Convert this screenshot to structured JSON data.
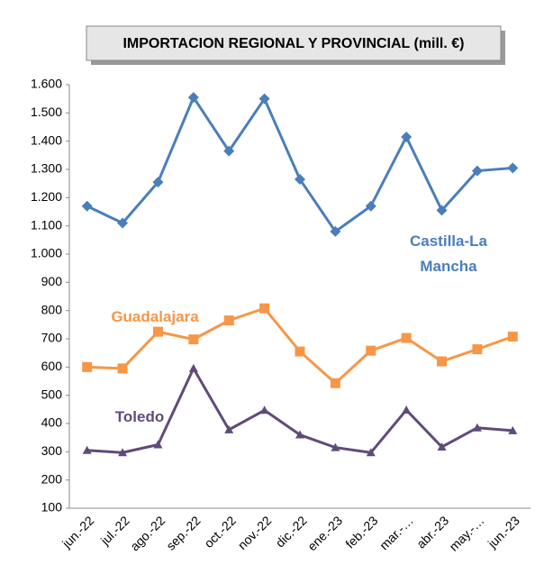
{
  "chart_data": {
    "type": "line",
    "title": "IMPORTACION REGIONAL Y PROVINCIAL (mill. €)",
    "categories": [
      "jun.-22",
      "jul.-22",
      "ago.-22",
      "sep.-22",
      "oct.-22",
      "nov.-22",
      "dic.-22",
      "ene.-23",
      "feb.-23",
      "mar.-…",
      "abr.-23",
      "may.-…",
      "jun.-23"
    ],
    "series": [
      {
        "name": "Castilla-La Mancha",
        "color": "#4a7ebb",
        "marker": "diamond",
        "values": [
          1170,
          1110,
          1255,
          1555,
          1365,
          1550,
          1265,
          1080,
          1170,
          1415,
          1155,
          1295,
          1305
        ]
      },
      {
        "name": "Guadalajara",
        "color": "#f79646",
        "marker": "square",
        "values": [
          600,
          595,
          725,
          698,
          765,
          808,
          655,
          543,
          658,
          703,
          620,
          663,
          708
        ]
      },
      {
        "name": "Toledo",
        "color": "#604a7b",
        "marker": "triangle",
        "values": [
          305,
          297,
          325,
          595,
          378,
          447,
          360,
          315,
          297,
          448,
          317,
          385,
          375
        ]
      }
    ],
    "ylim": [
      100,
      1600
    ],
    "yticks": [
      100,
      200,
      300,
      400,
      500,
      600,
      700,
      800,
      900,
      {
        "value": 1000,
        "label": "1.000"
      },
      {
        "value": 1100,
        "label": "1.100"
      },
      {
        "value": 1200,
        "label": "1.200"
      },
      {
        "value": 1300,
        "label": "1.300"
      },
      {
        "value": 1400,
        "label": "1.400"
      },
      {
        "value": 1500,
        "label": "1.500"
      },
      {
        "value": 1600,
        "label": "1.600"
      }
    ],
    "grid": false
  }
}
